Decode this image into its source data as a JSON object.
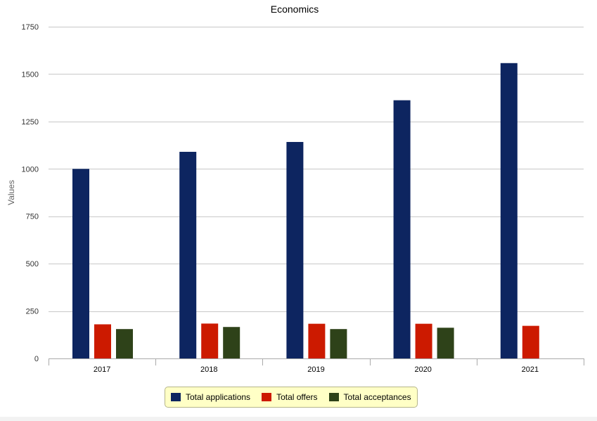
{
  "chart_data": {
    "type": "bar",
    "title": "Economics",
    "xlabel": "",
    "ylabel": "Values",
    "categories": [
      "2017",
      "2018",
      "2019",
      "2020",
      "2021"
    ],
    "series": [
      {
        "name": "Total applications",
        "color": "#0d2560",
        "values": [
          1000,
          1090,
          1142,
          1362,
          1558
        ]
      },
      {
        "name": "Total offers",
        "color": "#cc1a00",
        "values": [
          180,
          184,
          183,
          183,
          172
        ]
      },
      {
        "name": "Total acceptances",
        "color": "#2e4219",
        "values": [
          155,
          166,
          155,
          162,
          null
        ]
      }
    ],
    "ylim": [
      0,
      1750
    ],
    "yticks": [
      0,
      250,
      500,
      750,
      1000,
      1250,
      1500,
      1750
    ],
    "grid": true,
    "legend_position": "bottom-center"
  }
}
